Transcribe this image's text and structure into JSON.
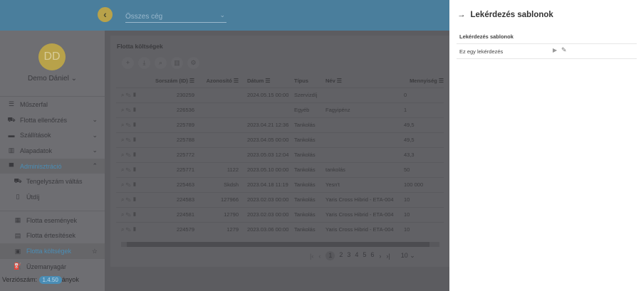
{
  "header": {
    "company_select": "Összes cég"
  },
  "user": {
    "initials": "DD",
    "name": "Demo Dániel"
  },
  "sidebar": {
    "items": [
      {
        "label": "Műszerfal",
        "icon": "dashboard-icon"
      },
      {
        "label": "Flotta ellenőrzés",
        "icon": "car-icon"
      },
      {
        "label": "Szállítások",
        "icon": "bus-icon"
      },
      {
        "label": "Alapadatok",
        "icon": "settings-data-icon"
      },
      {
        "label": "Adminisztráció",
        "icon": "monitor-icon"
      },
      {
        "label": "Tengelyszám váltás",
        "icon": "truck-icon"
      },
      {
        "label": "Útdíj",
        "icon": "map-icon"
      },
      {
        "label": "Flotta események",
        "icon": "calendar-icon"
      },
      {
        "label": "Flotta értesítések",
        "icon": "calendar-alert-icon"
      },
      {
        "label": "Flotta költségek",
        "icon": "money-icon"
      },
      {
        "label": "Üzemanyagár",
        "icon": "fuel-icon"
      },
      {
        "label": "ányok",
        "icon": ""
      }
    ]
  },
  "version": {
    "label": "Verziószám:",
    "value": "1.4.50"
  },
  "main": {
    "title": "Flotta költségek",
    "columns": [
      "Sorszám (ID)",
      "Azonosító",
      "Dátum",
      "Típus",
      "Név",
      "Mennyiség"
    ],
    "rows": [
      [
        "230259",
        "",
        "2024.05.15 00:00",
        "Szervizdíj",
        "",
        "0"
      ],
      [
        "226536",
        "",
        "",
        "Egyéb",
        "Fagyipénz",
        "1"
      ],
      [
        "225789",
        "",
        "2023.04.21 12:36",
        "Tankolás",
        "",
        "49,5"
      ],
      [
        "225788",
        "",
        "2023.04.05 00:00",
        "Tankolás",
        "",
        "49,5"
      ],
      [
        "225772",
        "",
        "2023.05.03 12:04",
        "Tankolás",
        "",
        "43,3"
      ],
      [
        "225771",
        "1122",
        "2023.05.10 00:00",
        "Tankolás",
        "tankolás",
        "50"
      ],
      [
        "225463",
        "Skdsh",
        "2023.04.18 11:19",
        "Tankolás",
        "Yesn't",
        "100 000"
      ],
      [
        "224583",
        "127966",
        "2023.02.03 00:00",
        "Tankolás",
        "Yaris Cross Hibrid - ETA-004",
        "10"
      ],
      [
        "224581",
        "12790",
        "2023.02.03 00:00",
        "Tankolás",
        "Yaris Cross Hibrid - ETA-004",
        "10"
      ],
      [
        "224579",
        "1279",
        "2023.03.06 00:00",
        "Tankolás",
        "Yaris Cross Hibrid - ETA-004",
        "10"
      ]
    ],
    "pages": [
      "1",
      "2",
      "3",
      "4",
      "5",
      "6"
    ],
    "page_size": "10"
  },
  "drawer": {
    "title": "Lekérdezés sablonok",
    "section": "Lekérdezés sablonok",
    "items": [
      "Ez egy lekérdezés"
    ]
  }
}
